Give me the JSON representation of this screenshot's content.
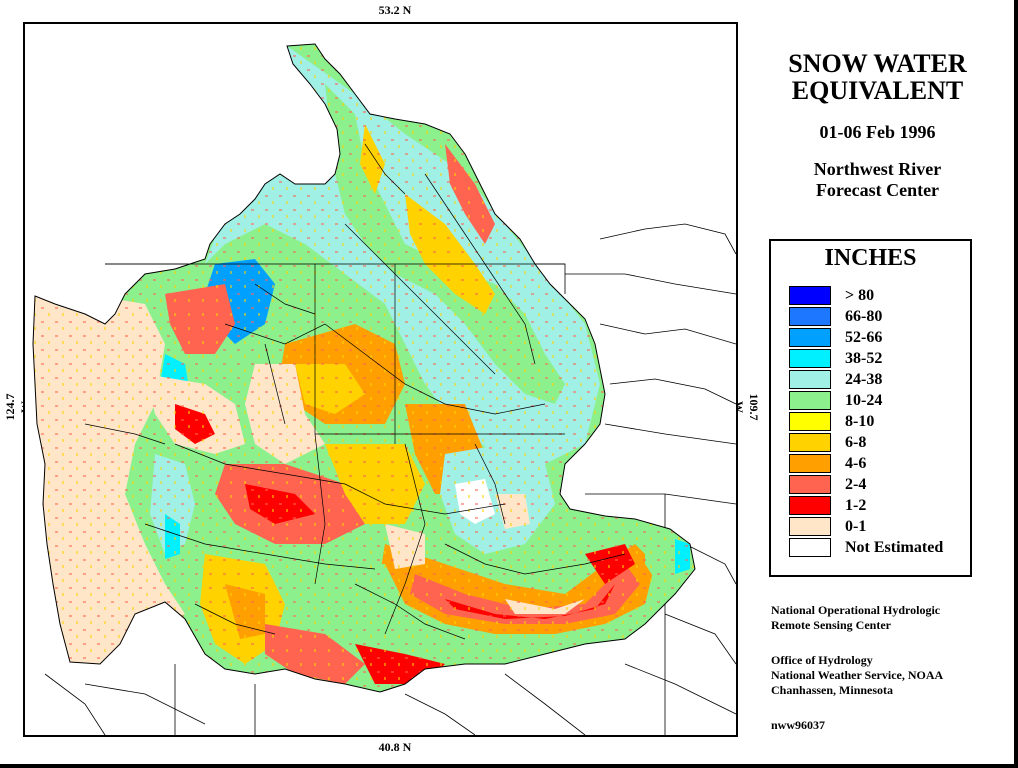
{
  "coords": {
    "top": "53.2 N",
    "bottom": "40.8 N",
    "left": "124.7 W",
    "right": "109.7 W"
  },
  "title": {
    "line1": "SNOW WATER",
    "line2": "EQUIVALENT"
  },
  "date": "01-06 Feb 1996",
  "center": {
    "line1": "Northwest River",
    "line2": "Forecast Center"
  },
  "legend": {
    "title": "INCHES",
    "items": [
      {
        "label": "> 80",
        "color": "#0000ff"
      },
      {
        "label": "66-80",
        "color": "#1e78ff"
      },
      {
        "label": "52-66",
        "color": "#00a0ff"
      },
      {
        "label": "38-52",
        "color": "#00f0ff"
      },
      {
        "label": "24-38",
        "color": "#a0f0e6"
      },
      {
        "label": "10-24",
        "color": "#8cf08c"
      },
      {
        "label": "8-10",
        "color": "#ffff00"
      },
      {
        "label": "6-8",
        "color": "#ffd200"
      },
      {
        "label": "4-6",
        "color": "#ffa000"
      },
      {
        "label": "2-4",
        "color": "#ff6450"
      },
      {
        "label": "1-2",
        "color": "#ff0000"
      },
      {
        "label": "0-1",
        "color": "#ffe6c8"
      },
      {
        "label": "Not Estimated",
        "color": "#ffffff"
      }
    ]
  },
  "credits": {
    "line1": "National Operational Hydrologic",
    "line2": "Remote Sensing Center",
    "line3": "Office of Hydrology",
    "line4": "National Weather Service, NOAA",
    "line5": "Chanhassen, Minnesota",
    "code": "nww96037"
  }
}
